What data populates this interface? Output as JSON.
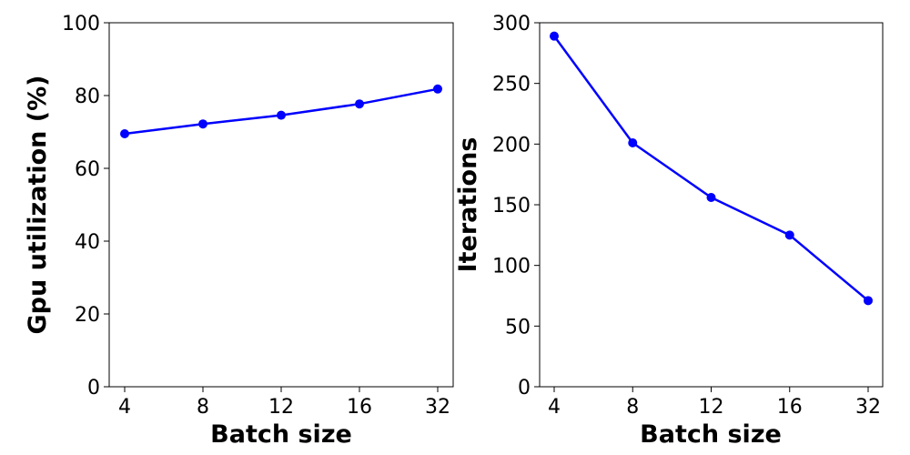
{
  "chart_data": [
    {
      "type": "line",
      "categories": [
        "4",
        "8",
        "12",
        "16",
        "32"
      ],
      "series": [
        {
          "values": [
            69.5,
            72.2,
            74.6,
            77.7,
            81.8
          ]
        }
      ],
      "xlabel": "Batch size",
      "ylabel": "Gpu utilization (%)",
      "ylim": [
        0,
        100
      ],
      "yticks": [
        "0",
        "20",
        "40",
        "60",
        "80",
        "100"
      ],
      "grid": false,
      "color": "#0000ff"
    },
    {
      "type": "line",
      "categories": [
        "4",
        "8",
        "12",
        "16",
        "32"
      ],
      "series": [
        {
          "values": [
            289,
            201,
            156,
            125,
            71
          ]
        }
      ],
      "xlabel": "Batch size",
      "ylabel": "Iterations",
      "ylim": [
        0,
        300
      ],
      "yticks": [
        "0",
        "50",
        "100",
        "150",
        "200",
        "250",
        "300"
      ],
      "grid": false,
      "color": "#0000ff"
    }
  ]
}
